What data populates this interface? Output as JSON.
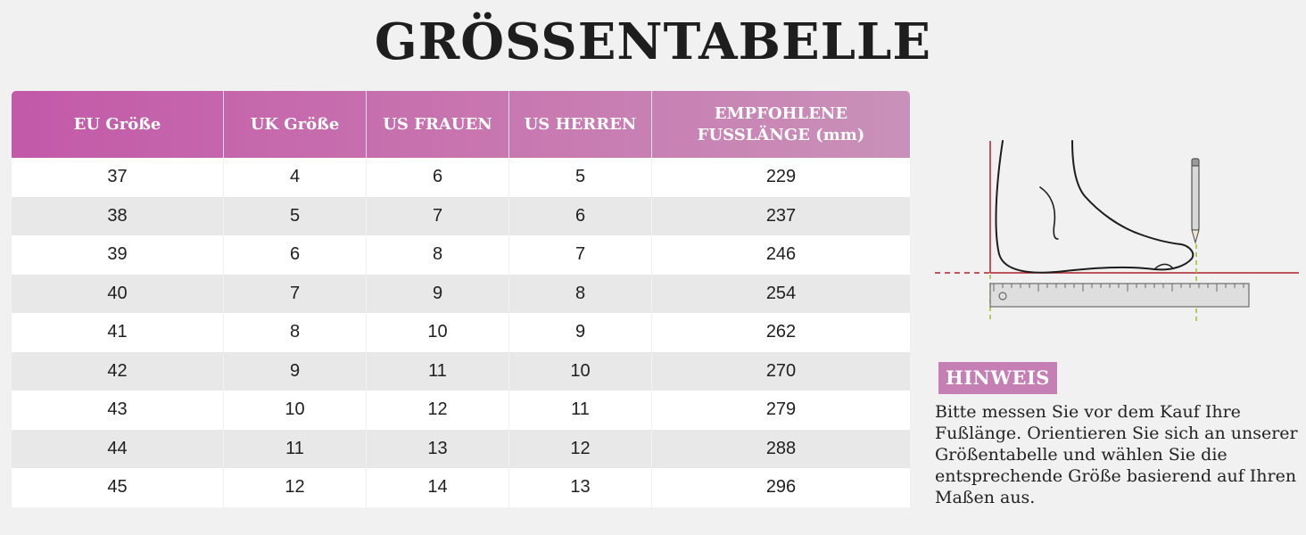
{
  "title": "GRÖSSENTABELLE",
  "table": {
    "headers": [
      "EU Größe",
      "UK Größe",
      "US FRAUEN",
      "US HERREN",
      "EMPFOHLENE FUSSLÄNGE (mm)"
    ],
    "rows": [
      [
        "37",
        "4",
        "6",
        "5",
        "229"
      ],
      [
        "38",
        "5",
        "7",
        "6",
        "237"
      ],
      [
        "39",
        "6",
        "8",
        "7",
        "246"
      ],
      [
        "40",
        "7",
        "9",
        "8",
        "254"
      ],
      [
        "41",
        "8",
        "10",
        "9",
        "262"
      ],
      [
        "42",
        "9",
        "11",
        "10",
        "270"
      ],
      [
        "43",
        "10",
        "12",
        "11",
        "279"
      ],
      [
        "44",
        "11",
        "13",
        "12",
        "288"
      ],
      [
        "45",
        "12",
        "14",
        "13",
        "296"
      ]
    ]
  },
  "hint": {
    "label": "HINWEIS",
    "text": "Bitte messen Sie vor dem Kauf Ihre Fußlänge. Orientieren Sie sich an unserer Größentabelle und wählen Sie die entsprechende Größe basierend auf Ihren Maßen aus."
  },
  "colors": {
    "header_gradient_start": "#c359a9",
    "header_gradient_end": "#c991b9",
    "hint_label_bg": "#c67fb4",
    "guide_line": "#b0202c",
    "marker_line": "#9fc23a"
  },
  "icons": {
    "illustration": "foot-measurement-illustration",
    "pencil": "pencil-icon",
    "ruler": "ruler-icon"
  }
}
